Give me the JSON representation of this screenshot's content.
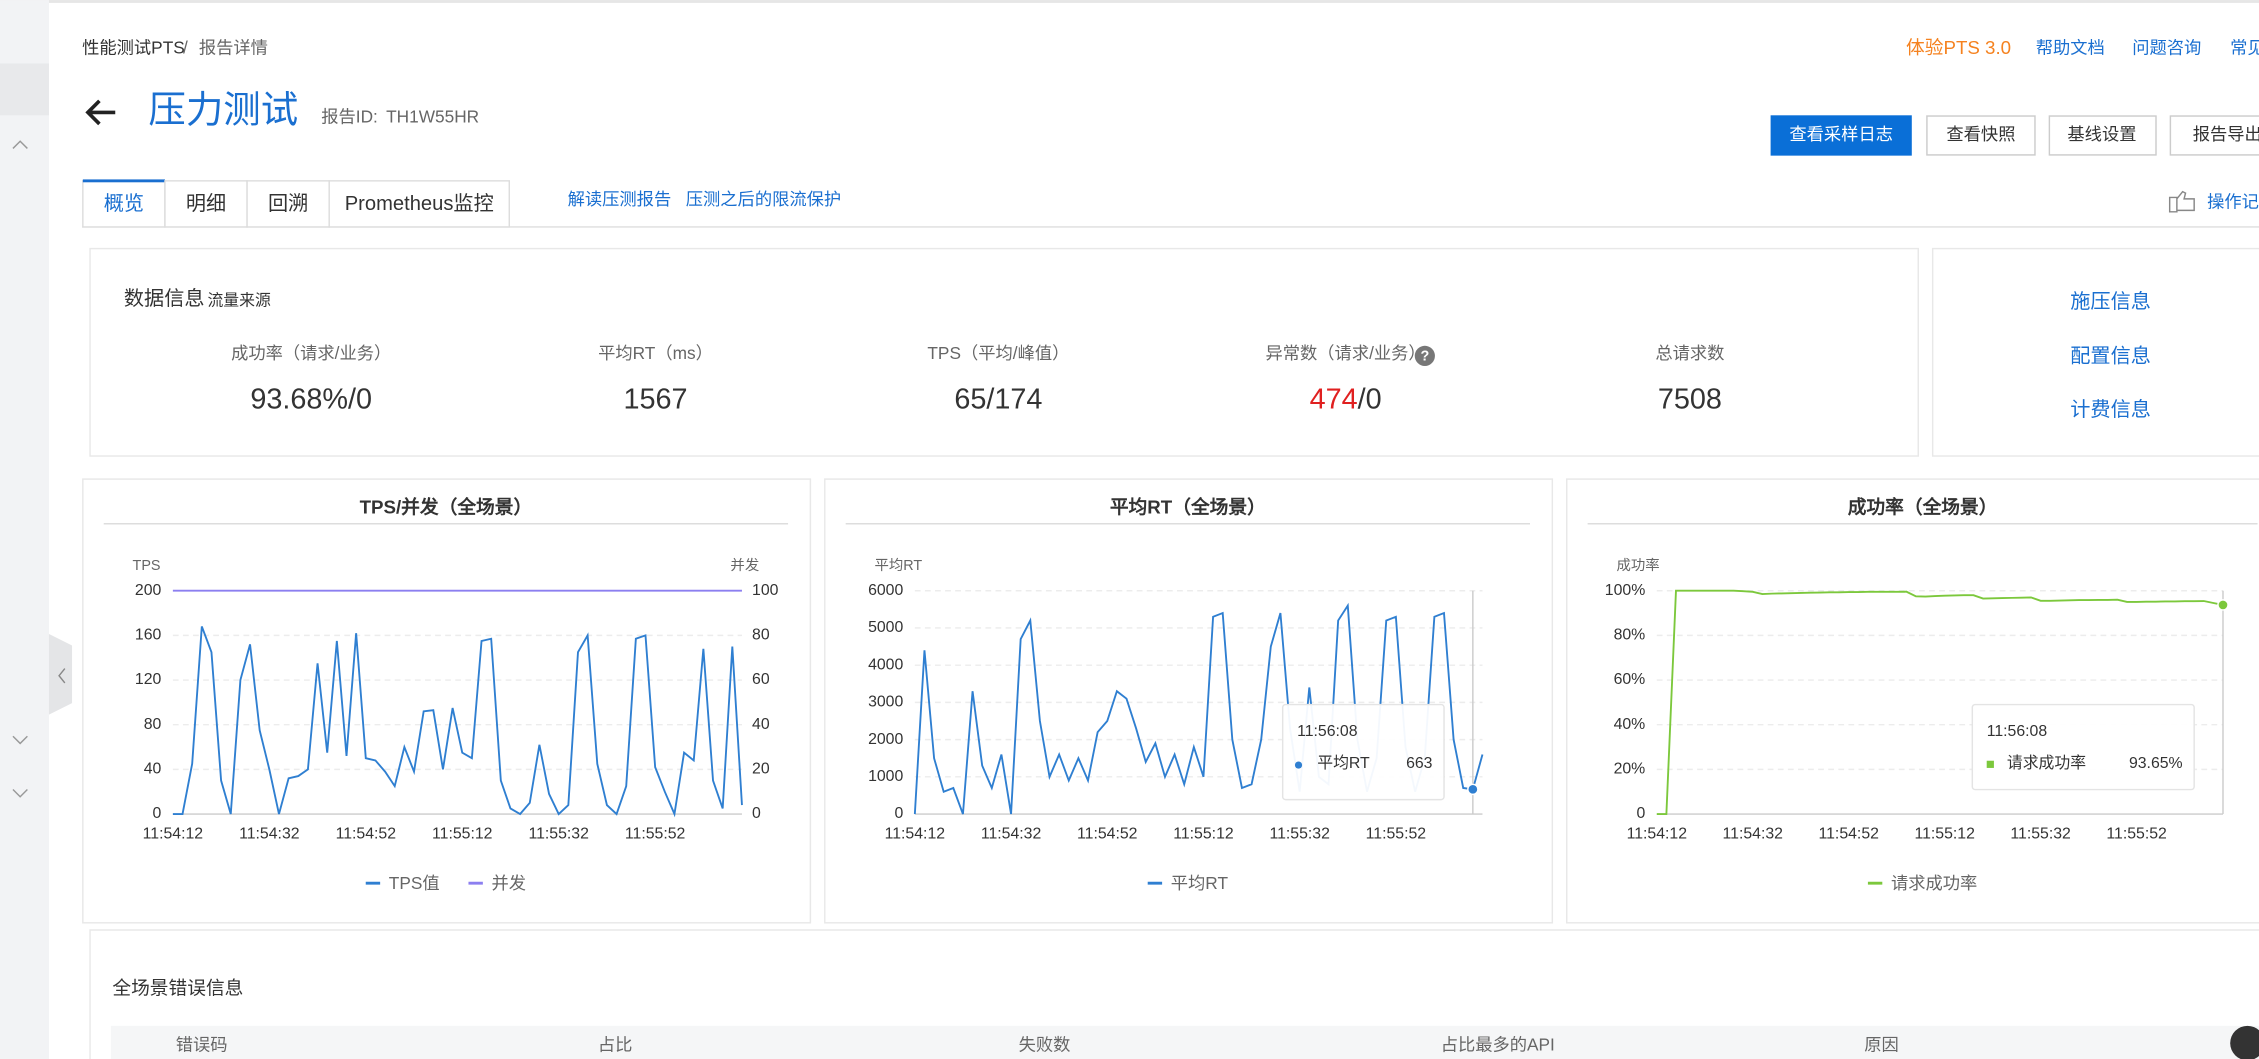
{
  "breadcrumb": [
    "性能测试PTS",
    "报告详情"
  ],
  "top_links": [
    "体验PTS 3.0",
    "帮助文档",
    "问题咨询",
    "常见"
  ],
  "header": {
    "title": "压力测试",
    "report_id_label": "报告ID:",
    "report_id": "TH1W55HR"
  },
  "buttons": [
    "查看采样日志",
    "查看快照",
    "基线设置",
    "报告导出"
  ],
  "tabs": [
    "概览",
    "明细",
    "回溯",
    "Prometheus监控"
  ],
  "tab_links": [
    "解读压测报告",
    "压测之后的限流保护"
  ],
  "operation_link": "操作记",
  "data_info": {
    "title": "数据信息",
    "source": "流量来源",
    "metrics": [
      {
        "label": "成功率（请求/业务）",
        "value": "93.68%/0"
      },
      {
        "label": "平均RT（ms）",
        "value": 1567
      },
      {
        "label": "TPS（平均/峰值）",
        "value": "65/174"
      },
      {
        "label": "异常数（请求/业务）",
        "value": 474,
        "suffix": "/0"
      },
      {
        "label": "总请求数",
        "value": 7508
      }
    ]
  },
  "side_links": [
    "施压信息",
    "配置信息",
    "计费信息"
  ],
  "chart_data": [
    {
      "type": "line",
      "title": "TPS/并发（全场景）",
      "ylabel": "TPS",
      "y2label": "并发",
      "categories": [
        "11:54:12",
        null,
        null,
        null,
        null,
        null,
        null,
        null,
        null,
        null,
        "11:54:32",
        null,
        null,
        null,
        null,
        null,
        null,
        null,
        null,
        null,
        "11:54:52",
        null,
        null,
        null,
        null,
        null,
        null,
        null,
        null,
        null,
        "11:55:12",
        null,
        null,
        null,
        null,
        null,
        null,
        null,
        null,
        null,
        "11:55:32",
        null,
        null,
        null,
        null,
        null,
        null,
        null,
        null,
        null,
        "11:55:52",
        null,
        null,
        null,
        null,
        null,
        null,
        null,
        null,
        null
      ],
      "ylim": [
        0,
        200
      ],
      "yticks": [
        0,
        40,
        80,
        120,
        160,
        200
      ],
      "y2lim": [
        0,
        100
      ],
      "y2ticks": [
        0,
        20,
        40,
        60,
        80,
        100
      ],
      "grid": true,
      "series": [
        {
          "name": "TPS值",
          "color": "#2f7fd1",
          "values": [
            0,
            0,
            45,
            168,
            145,
            30,
            0,
            120,
            152,
            75,
            40,
            0,
            32,
            34,
            40,
            135,
            55,
            155,
            52,
            162,
            50,
            48,
            38,
            25,
            60,
            38,
            92,
            93,
            40,
            95,
            55,
            50,
            155,
            157,
            30,
            5,
            0,
            10,
            62,
            18,
            0,
            8,
            145,
            160,
            45,
            8,
            0,
            25,
            157,
            160,
            42,
            20,
            0,
            55,
            48,
            148,
            30,
            5,
            150,
            8
          ]
        },
        {
          "name": "并发",
          "color": "#8c7ff0",
          "axis": "y2",
          "values": [
            100,
            100,
            100,
            100,
            100,
            100,
            100,
            100,
            100,
            100,
            100,
            100,
            100,
            100,
            100,
            100,
            100,
            100,
            100,
            100,
            100,
            100,
            100,
            100,
            100,
            100,
            100,
            100,
            100,
            100,
            100,
            100,
            100,
            100,
            100,
            100,
            100,
            100,
            100,
            100,
            100,
            100,
            100,
            100,
            100,
            100,
            100,
            100,
            100,
            100,
            100,
            100,
            100,
            100,
            100,
            100,
            100,
            100,
            100,
            100
          ]
        }
      ]
    },
    {
      "type": "line",
      "title": "平均RT（全场景）",
      "ylabel": "平均RT",
      "categories": [
        "11:54:12",
        null,
        null,
        null,
        null,
        null,
        null,
        null,
        null,
        null,
        "11:54:32",
        null,
        null,
        null,
        null,
        null,
        null,
        null,
        null,
        null,
        "11:54:52",
        null,
        null,
        null,
        null,
        null,
        null,
        null,
        null,
        null,
        "11:55:12",
        null,
        null,
        null,
        null,
        null,
        null,
        null,
        null,
        null,
        "11:55:32",
        null,
        null,
        null,
        null,
        null,
        null,
        null,
        null,
        null,
        "11:55:52",
        null,
        null,
        null,
        null,
        null,
        null,
        null,
        null,
        null
      ],
      "ylim": [
        0,
        6000
      ],
      "yticks": [
        0,
        1000,
        2000,
        3000,
        4000,
        5000,
        6000
      ],
      "grid": true,
      "series": [
        {
          "name": "平均RT",
          "color": "#2f7fd1",
          "values": [
            0,
            4400,
            1500,
            600,
            700,
            0,
            3300,
            1300,
            700,
            1600,
            0,
            4700,
            5200,
            2500,
            1000,
            1600,
            900,
            1500,
            900,
            2200,
            2500,
            3300,
            3100,
            2300,
            1400,
            1900,
            1000,
            1600,
            800,
            1800,
            1000,
            5300,
            5400,
            2000,
            700,
            800,
            2000,
            4500,
            5400,
            2300,
            600,
            3400,
            1000,
            800,
            5200,
            5600,
            2000,
            600,
            1500,
            5200,
            5300,
            1800,
            600,
            1500,
            5300,
            5400,
            2000,
            700,
            663,
            1600
          ]
        }
      ],
      "tooltip": {
        "time": "11:56:08"
      }
    },
    {
      "type": "line",
      "title": "成功率（全场景）",
      "ylabel": "成功率",
      "categories": [
        "11:54:12",
        null,
        null,
        null,
        null,
        null,
        null,
        null,
        null,
        null,
        "11:54:32",
        null,
        null,
        null,
        null,
        null,
        null,
        null,
        null,
        null,
        "11:54:52",
        null,
        null,
        null,
        null,
        null,
        null,
        null,
        null,
        null,
        "11:55:12",
        null,
        null,
        null,
        null,
        null,
        null,
        null,
        null,
        null,
        "11:55:32",
        null,
        null,
        null,
        null,
        null,
        null,
        null,
        null,
        null,
        "11:55:52",
        null,
        null,
        null,
        null,
        null,
        null,
        null,
        null,
        null
      ],
      "ylim": [
        0,
        100
      ],
      "yticks": [
        0,
        {
          "value": 20,
          "label": "20%"
        },
        {
          "value": 40,
          "label": "40%"
        },
        {
          "value": 60,
          "label": "60%"
        },
        {
          "value": 80,
          "label": "80%"
        },
        {
          "value": 100,
          "label": "100%"
        }
      ],
      "grid": true,
      "series": [
        {
          "name": "请求成功率",
          "color": "#7cc83c",
          "values": [
            0,
            0,
            100,
            100,
            100,
            100,
            100,
            100,
            100,
            99.8,
            99.5,
            98.5,
            98.7,
            98.8,
            98.9,
            99.0,
            99.1,
            99.2,
            99.3,
            99.3,
            99.4,
            99.4,
            99.5,
            99.5,
            99.5,
            99.5,
            99.6,
            97.5,
            97.4,
            97.6,
            97.8,
            97.9,
            98.0,
            98.0,
            96.5,
            96.6,
            96.7,
            96.8,
            96.9,
            97.0,
            95.5,
            95.5,
            95.6,
            95.7,
            95.8,
            95.8,
            95.9,
            95.9,
            96.0,
            95.0,
            95.0,
            95.1,
            95.1,
            95.2,
            95.2,
            95.3,
            95.3,
            95.4,
            94.5,
            93.65
          ]
        }
      ],
      "tooltip": {
        "time": "11:56:08",
        "label": "93.65%"
      }
    }
  ],
  "error_table": {
    "title": "全场景错误信息",
    "columns": [
      "错误码",
      "占比",
      "失败数",
      "占比最多的API",
      "原因"
    ]
  }
}
